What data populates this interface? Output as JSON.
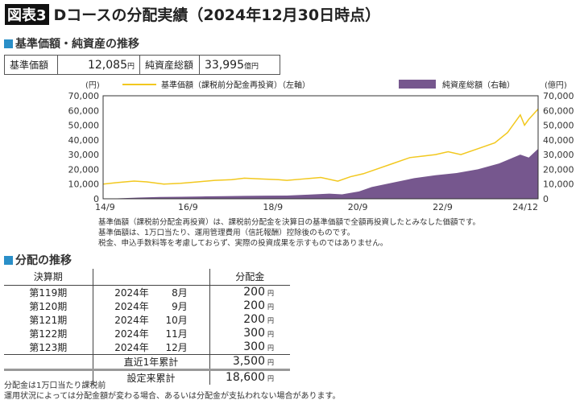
{
  "title": {
    "tag": "図表3",
    "text": "Dコースの分配実績（2024年12月30日時点）"
  },
  "section1": "基準価額・純資産の推移",
  "summary": {
    "nav_label": "基準価額",
    "nav_value": "12,085",
    "nav_unit": "円",
    "aum_label": "純資産総額",
    "aum_value": "33,995",
    "aum_unit": "億円"
  },
  "colors": {
    "line": "#f2c81e",
    "area": "#76578e",
    "accent": "#2a8fc8"
  },
  "chart_data": {
    "type": "line+area",
    "left_unit": "(円)",
    "right_unit": "(億円)",
    "legend": {
      "line": "基準価額（課税前分配金再投資）（左軸）",
      "area": "純資産総額（右軸）"
    },
    "yticks": [
      "70,000",
      "60,000",
      "50,000",
      "40,000",
      "30,000",
      "20,000",
      "10,000",
      "0"
    ],
    "ylim": [
      0,
      70000
    ],
    "xticks": [
      "14/9",
      "16/9",
      "18/9",
      "20/9",
      "22/9",
      "24/12"
    ],
    "xtick_pos": [
      2014.67,
      2016.67,
      2018.67,
      2020.67,
      2022.67,
      2024.92
    ],
    "xlim": [
      2014.67,
      2024.92
    ],
    "line_series": {
      "name": "基準価額（課税前分配金再投資）",
      "x": [
        2014.67,
        2015.0,
        2015.4,
        2015.7,
        2016.1,
        2016.5,
        2016.9,
        2017.3,
        2017.7,
        2018.0,
        2018.4,
        2018.8,
        2019.0,
        2019.4,
        2019.8,
        2020.2,
        2020.5,
        2020.8,
        2021.1,
        2021.5,
        2021.9,
        2022.2,
        2022.5,
        2022.8,
        2023.1,
        2023.5,
        2023.9,
        2024.2,
        2024.5,
        2024.6,
        2024.7,
        2024.92
      ],
      "values": [
        10000,
        11000,
        12000,
        11500,
        10000,
        10500,
        11500,
        12500,
        13000,
        14000,
        13500,
        13000,
        12500,
        13500,
        14500,
        12000,
        15000,
        17000,
        20000,
        24000,
        28000,
        29000,
        30000,
        32000,
        30000,
        34000,
        38000,
        45000,
        57000,
        50000,
        54000,
        61000
      ]
    },
    "area_series": {
      "name": "純資産総額",
      "x": [
        2014.67,
        2015.0,
        2015.5,
        2016.0,
        2016.5,
        2017.0,
        2017.5,
        2018.0,
        2018.5,
        2019.0,
        2019.5,
        2020.0,
        2020.3,
        2020.7,
        2021.0,
        2021.5,
        2022.0,
        2022.5,
        2023.0,
        2023.5,
        2024.0,
        2024.5,
        2024.7,
        2024.92
      ],
      "values": [
        0,
        300,
        800,
        1200,
        1400,
        1600,
        1800,
        2000,
        2100,
        2200,
        2800,
        3500,
        3000,
        5000,
        8000,
        11000,
        14000,
        16000,
        17500,
        20000,
        24000,
        30000,
        28000,
        34000
      ]
    }
  },
  "notes": [
    "基準価額（課税前分配金再投資）は、課税前分配金を決算日の基準価額で全額再投資したとみなした価額です。",
    "基準価額は、1万口当たり、運用管理費用（信託報酬）控除後のものです。",
    "税金、申込手数料等を考慮しておらず、実際の投資成果を示すものではありません。"
  ],
  "section2": "分配の推移",
  "dist": {
    "headers": [
      "決算期",
      "",
      "分配金"
    ],
    "rows": [
      {
        "period": "第119期",
        "year": "2024年",
        "month": "8月",
        "amount": "200"
      },
      {
        "period": "第120期",
        "year": "2024年",
        "month": "9月",
        "amount": "200"
      },
      {
        "period": "第121期",
        "year": "2024年",
        "month": "10月",
        "amount": "200"
      },
      {
        "period": "第122期",
        "year": "2024年",
        "month": "11月",
        "amount": "300"
      },
      {
        "period": "第123期",
        "year": "2024年",
        "month": "12月",
        "amount": "300"
      }
    ],
    "unit": "円",
    "recent_label": "直近1年累計",
    "recent_value": "3,500",
    "total_label": "設定来累計",
    "total_value": "18,600"
  },
  "footnotes": [
    "分配金は1万口当たり課税前",
    "運用状況によっては分配金額が変わる場合、あるいは分配金が支払われない場合があります。"
  ]
}
